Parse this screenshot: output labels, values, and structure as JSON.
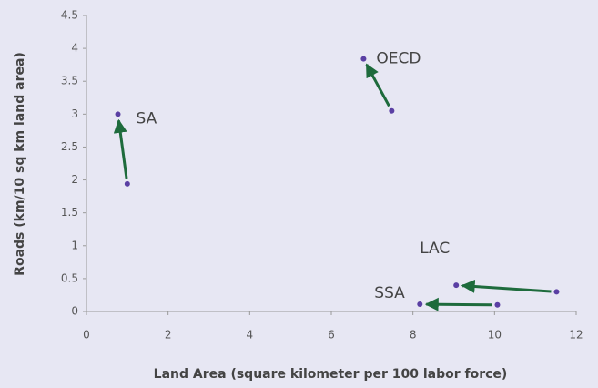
{
  "chart_data": {
    "type": "scatter",
    "xlabel": "Land Area (square kilometer per 100 labor force)",
    "ylabel": "Roads (km/10 sq km land area)",
    "xlim": [
      0,
      12
    ],
    "xticks": [
      0,
      2,
      4,
      6,
      8,
      10,
      12
    ],
    "ylim": [
      0,
      4.5
    ],
    "yticks": [
      0,
      0.5,
      1,
      1.5,
      2,
      2.5,
      3,
      3.5,
      4,
      4.5
    ],
    "point_color": "#5a3fa3",
    "arrow_color": "#1e6b3c",
    "series": [
      {
        "name": "SA",
        "x": [
          1.0,
          0.77
        ],
        "y": [
          1.94,
          3.0
        ]
      },
      {
        "name": "OECD",
        "x": [
          7.48,
          6.79
        ],
        "y": [
          3.05,
          3.84
        ]
      },
      {
        "name": "LAC",
        "x": [
          11.52,
          9.06
        ],
        "y": [
          0.3,
          0.4
        ]
      },
      {
        "name": "SSA",
        "x": [
          10.07,
          8.17
        ],
        "y": [
          0.1,
          0.11
        ]
      }
    ]
  }
}
